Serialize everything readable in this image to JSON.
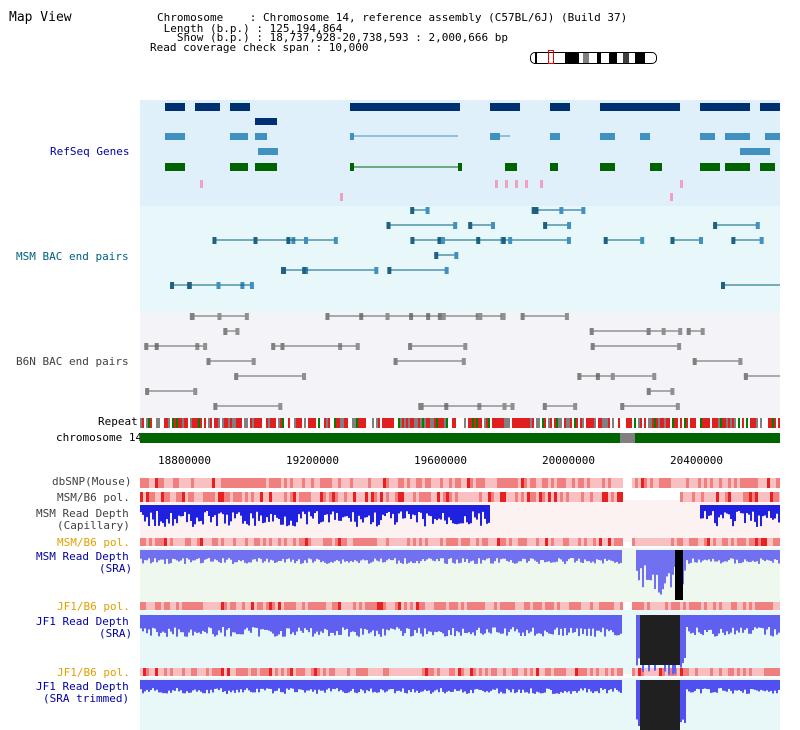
{
  "window": {
    "title": "Map View"
  },
  "header": {
    "chromosome": "Chromosome    : Chromosome 14, reference assembly (C57BL/6J) (Build 37)",
    "length": " Length (b.p.) : 125,194,864",
    "show": "   Show (b.p.) : 18,737,928-20,738,593 : 2,000,666 bp",
    "coverage": "Read coverage check span : 10,000"
  },
  "tracks": {
    "refseq": "RefSeq Genes",
    "msm_bac": "MSM BAC end pairs",
    "b6n_bac": "B6N BAC end pairs",
    "repeat": "Repeat",
    "chromosome": "chromosome 14",
    "dbsnp": "dbSNP(Mouse)",
    "msm_b6_pol": "MSM/B6 pol.",
    "msm_depth_cap_1": "MSM Read Depth",
    "msm_depth_cap_2": "(Capillary)",
    "msm_b6_pol2": "MSM/B6 pol.",
    "msm_depth_sra_1": "MSM Read Depth",
    "msm_depth_sra_2": "(SRA)",
    "jf1_b6_pol": "JF1/B6 pol.",
    "jf1_depth_sra_1": "JF1 Read Depth",
    "jf1_depth_sra_2": "(SRA)",
    "jf1_b6_pol2": "JF1/B6 pol.",
    "jf1_depth_trim_1": "JF1 Read Depth",
    "jf1_depth_trim_2": "(SRA trimmed)"
  },
  "axis": {
    "ticks": [
      "18800000",
      "19200000",
      "19600000",
      "20000000",
      "20400000"
    ]
  },
  "colors": {
    "gene_dark": "#003070",
    "gene_mid": "#4090c0",
    "gene_green": "#006400",
    "depth_blue": "#2020e0",
    "chrom_green": "#006400"
  }
}
